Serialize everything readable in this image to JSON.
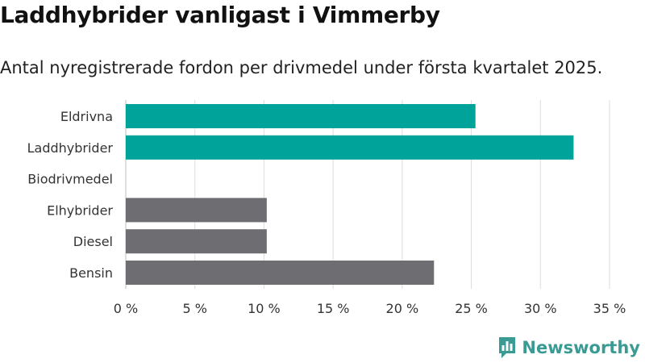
{
  "header": {
    "title": "Laddhybrider vanligast i Vimmerby",
    "subtitle": "Antal nyregistrerade fordon per drivmedel under första kvartalet 2025."
  },
  "brand": {
    "name": "Newsworthy",
    "icon": "newsworthy-logo-icon",
    "color": "#3a9b95"
  },
  "chart_data": {
    "type": "bar",
    "orientation": "horizontal",
    "title": "Laddhybrider vanligast i Vimmerby",
    "subtitle": "Antal nyregistrerade fordon per drivmedel under första kvartalet 2025.",
    "categories": [
      "Eldrivna",
      "Laddhybrider",
      "Biodrivmedel",
      "Elhybrider",
      "Diesel",
      "Bensin"
    ],
    "values": [
      25.3,
      32.4,
      0,
      10.2,
      10.2,
      22.3
    ],
    "colors": [
      "#00a39a",
      "#00a39a",
      "#00a39a",
      "#6d6d72",
      "#6d6d72",
      "#6d6d72"
    ],
    "xlim": [
      0,
      35
    ],
    "xticks": [
      0,
      5,
      10,
      15,
      20,
      25,
      30,
      35
    ],
    "xtick_labels": [
      "0 %",
      "5 %",
      "10 %",
      "15 %",
      "20 %",
      "25 %",
      "30 %",
      "35 %"
    ],
    "xlabel": "",
    "ylabel": "",
    "grid": true
  }
}
